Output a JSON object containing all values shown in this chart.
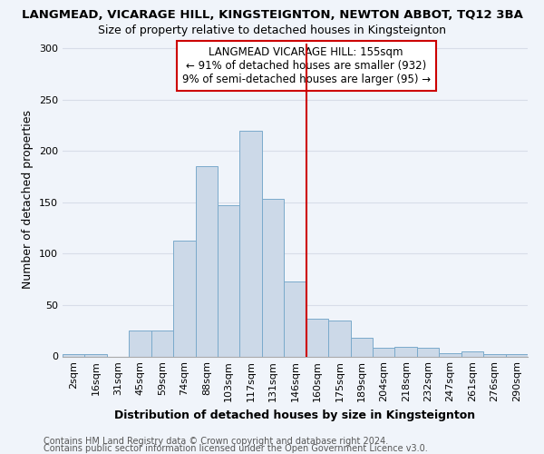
{
  "title": "LANGMEAD, VICARAGE HILL, KINGSTEIGNTON, NEWTON ABBOT, TQ12 3BA",
  "subtitle": "Size of property relative to detached houses in Kingsteignton",
  "xlabel": "Distribution of detached houses by size in Kingsteignton",
  "ylabel": "Number of detached properties",
  "categories": [
    "2sqm",
    "16sqm",
    "31sqm",
    "45sqm",
    "59sqm",
    "74sqm",
    "88sqm",
    "103sqm",
    "117sqm",
    "131sqm",
    "146sqm",
    "160sqm",
    "175sqm",
    "189sqm",
    "204sqm",
    "218sqm",
    "232sqm",
    "247sqm",
    "261sqm",
    "276sqm",
    "290sqm"
  ],
  "values": [
    2,
    2,
    0,
    25,
    25,
    113,
    185,
    147,
    220,
    153,
    73,
    37,
    35,
    18,
    8,
    9,
    8,
    3,
    5,
    2,
    2
  ],
  "bar_color": "#ccd9e8",
  "bar_edge_color": "#7aaacb",
  "vline_index": 11,
  "vline_color": "#cc0000",
  "annotation_text": "LANGMEAD VICARAGE HILL: 155sqm\n← 91% of detached houses are smaller (932)\n9% of semi-detached houses are larger (95) →",
  "annotation_box_color": "#ffffff",
  "annotation_box_edge_color": "#cc0000",
  "ylim": [
    0,
    305
  ],
  "yticks": [
    0,
    50,
    100,
    150,
    200,
    250,
    300
  ],
  "footer_line1": "Contains HM Land Registry data © Crown copyright and database right 2024.",
  "footer_line2": "Contains public sector information licensed under the Open Government Licence v3.0.",
  "background_color": "#f0f4fa",
  "plot_background_color": "#f0f4fa",
  "grid_color": "#d8dde8",
  "title_fontsize": 9.5,
  "subtitle_fontsize": 9,
  "axis_label_fontsize": 9,
  "tick_fontsize": 8,
  "footer_fontsize": 7,
  "annotation_fontsize": 8.5
}
